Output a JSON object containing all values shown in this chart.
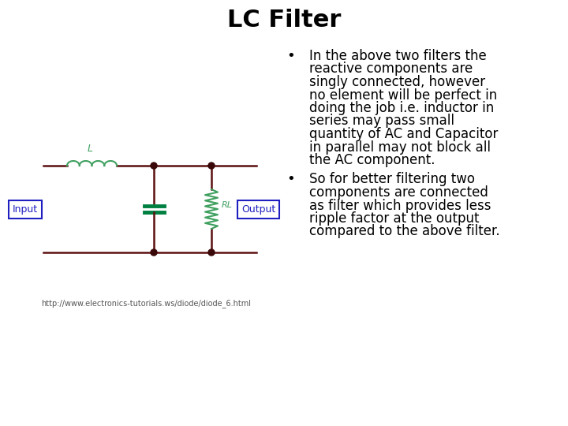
{
  "title": "LC Filter",
  "title_fontsize": 22,
  "title_fontweight": "bold",
  "url_text": "http://www.electronics-tutorials.ws/diode/diode_6.html",
  "url_fontsize": 7,
  "bullet_points": [
    "In the above two filters the\nreactive components are\nsingly connected, however\nno element will be perfect in\ndoing the job i.e. inductor in\nseries may pass small\nquantity of AC and Capacitor\nin parallel may not block all\nthe AC component.",
    "So for better filtering two\ncomponents are connected\nas filter which provides less\nripple factor at the output\ncompared to the above filter."
  ],
  "bullet_fontsize": 12,
  "background_color": "#ffffff",
  "circuit_color": "#5c1010",
  "inductor_color": "#40a060",
  "capacitor_color": "#008040",
  "resistor_color": "#40a060",
  "label_color": "#2020c0",
  "label_bg": "#ffffff",
  "node_color": "#3a0808",
  "text_color": "#000000",
  "rl_color": "#40a060"
}
